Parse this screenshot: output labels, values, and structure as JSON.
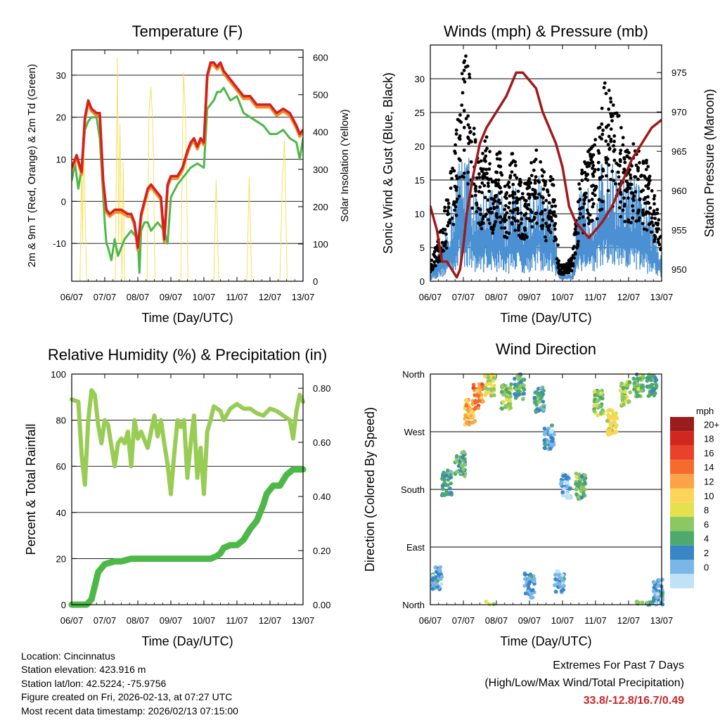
{
  "chart_data": [
    {
      "type": "line",
      "title": "Temperature (F)",
      "xlabel": "Time (Day/UTC)",
      "ylabel": "2m & 9m T (Red, Orange) & 2m Td (Green)",
      "y2label": "Solar Insolation (Yellow)",
      "x_ticks": [
        "06/07",
        "07/07",
        "08/07",
        "09/07",
        "10/07",
        "11/07",
        "12/07",
        "13/07"
      ],
      "ylim": [
        -19,
        36
      ],
      "y_ticks": [
        -10,
        0,
        10,
        20,
        30
      ],
      "y_tick_labels": [
        "-10",
        "0",
        "10",
        "20",
        "30"
      ],
      "y2lim": [
        0,
        620
      ],
      "y2_ticks": [
        0,
        100,
        200,
        300,
        400,
        500,
        600
      ],
      "y2_tick_labels": [
        "0",
        "100",
        "200",
        "300",
        "400",
        "500",
        "600"
      ],
      "colors": {
        "t2m": "#d32020",
        "t9m": "#f28c28",
        "td": "#4db848",
        "solar": "#f5e05a"
      },
      "series": [
        {
          "name": "2m T",
          "axis": "left",
          "x": [
            0,
            0.15,
            0.3,
            0.4,
            0.5,
            0.6,
            0.75,
            0.85,
            0.95,
            1.05,
            1.15,
            1.3,
            1.5,
            1.7,
            1.8,
            1.9,
            2.0,
            2.1,
            2.2,
            2.3,
            2.4,
            2.5,
            2.6,
            2.7,
            2.8,
            2.9,
            3.0,
            3.1,
            3.2,
            3.35,
            3.5,
            3.6,
            3.7,
            3.8,
            3.9,
            4.0,
            4.1,
            4.2,
            4.3,
            4.4,
            4.5,
            4.6,
            4.8,
            5.0,
            5.2,
            5.4,
            5.6,
            5.8,
            6.0,
            6.2,
            6.4,
            6.6,
            6.8,
            6.9,
            7.0
          ],
          "values": [
            8,
            11,
            7,
            20,
            24,
            22,
            21,
            21,
            5,
            -2,
            -3,
            -2,
            -2,
            -3,
            -3,
            -5,
            -11,
            -3,
            0,
            3,
            4,
            3,
            2,
            1,
            -9,
            4,
            6,
            6,
            6,
            8,
            12,
            14,
            15,
            13,
            15,
            14,
            30,
            33,
            33,
            32,
            33,
            31,
            29,
            27,
            25,
            25,
            23,
            23,
            23,
            21,
            22,
            21,
            18,
            16,
            17
          ]
        },
        {
          "name": "2m Td",
          "axis": "left",
          "x": [
            0,
            0.1,
            0.2,
            0.3,
            0.4,
            0.5,
            0.6,
            0.75,
            0.85,
            1.0,
            1.05,
            1.1,
            1.2,
            1.3,
            1.4,
            1.5,
            1.6,
            1.7,
            1.8,
            2.0,
            2.05,
            2.1,
            2.2,
            2.3,
            2.4,
            2.6,
            2.8,
            2.9,
            3.0,
            3.2,
            3.4,
            3.6,
            3.8,
            4.0,
            4.1,
            4.2,
            4.3,
            4.4,
            4.5,
            4.6,
            4.8,
            5.0,
            5.2,
            5.4,
            5.6,
            5.8,
            6.0,
            6.2,
            6.4,
            6.6,
            6.8,
            6.9,
            7.0
          ],
          "values": [
            5,
            9,
            3,
            8,
            17,
            19,
            20,
            20,
            15,
            -5,
            -10,
            -11,
            -14,
            -9,
            -13,
            -11,
            -9,
            -8,
            -7,
            -9,
            -17,
            -7,
            -5,
            -5,
            -7,
            -5,
            -7,
            -10,
            1,
            4,
            6,
            8,
            9,
            8,
            22,
            23,
            24,
            26,
            26,
            27,
            24,
            25,
            21,
            20,
            19,
            18,
            16,
            16,
            17,
            15,
            14,
            10,
            15
          ]
        },
        {
          "name": "Solar Insolation",
          "axis": "right",
          "x": [
            0.25,
            0.3,
            0.33,
            0.36,
            0.45,
            1.32,
            1.38,
            1.42,
            1.46,
            1.52,
            1.56,
            1.6,
            2.28,
            2.34,
            2.4,
            2.46,
            2.52,
            3.3,
            3.38,
            3.45,
            3.52,
            4.3,
            4.37,
            4.45,
            5.3,
            5.37,
            5.45,
            6.3,
            6.37,
            6.44,
            6.52
          ],
          "values": [
            0,
            320,
            100,
            400,
            0,
            0,
            600,
            100,
            420,
            0,
            320,
            0,
            0,
            460,
            520,
            400,
            0,
            0,
            560,
            430,
            0,
            0,
            270,
            0,
            0,
            280,
            0,
            0,
            260,
            380,
            0
          ]
        }
      ]
    },
    {
      "type": "scatter",
      "title": "Winds (mph) & Pressure (mb)",
      "xlabel": "Time (Day/UTC)",
      "ylabel": "Sonic Wind & Gust (Blue, Black)",
      "y2label": "Station Pressure (Maroon)",
      "x_ticks": [
        "06/07",
        "07/07",
        "08/07",
        "09/07",
        "10/07",
        "11/07",
        "12/07",
        "13/07"
      ],
      "ylim": [
        0,
        35
      ],
      "y_ticks": [
        0,
        5,
        10,
        15,
        20,
        25,
        30
      ],
      "y_tick_labels": [
        "0",
        "5",
        "10",
        "15",
        "20",
        "25",
        "30"
      ],
      "y2lim": [
        948.5,
        978.5
      ],
      "y2_ticks": [
        950,
        955,
        960,
        965,
        970,
        975
      ],
      "y2_tick_labels": [
        "950",
        "955",
        "960",
        "965",
        "970",
        "975"
      ],
      "colors": {
        "wind": "#4a90d2",
        "gust": "#000000",
        "pressure": "#a01a1a"
      },
      "series": [
        {
          "name": "Sonic Wind",
          "axis": "left",
          "x": [
            0,
            0.3,
            0.5,
            0.7,
            0.9,
            1.1,
            1.3,
            1.5,
            1.7,
            1.9,
            2.1,
            2.3,
            2.5,
            2.7,
            2.9,
            3.1,
            3.3,
            3.5,
            3.7,
            3.9,
            4.1,
            4.3,
            4.5,
            4.7,
            4.9,
            5.1,
            5.3,
            5.5,
            5.7,
            5.9,
            6.1,
            6.3,
            6.5,
            6.7,
            6.9,
            7.0
          ],
          "values": [
            1,
            3,
            5,
            8,
            12,
            13,
            9,
            7,
            10,
            8,
            9,
            6,
            10,
            8,
            7,
            9,
            10,
            7,
            8,
            1,
            1,
            1,
            8,
            9,
            8,
            10,
            12,
            11,
            10,
            9,
            10,
            9,
            8,
            6,
            4,
            3
          ]
        },
        {
          "name": "Gust",
          "axis": "left",
          "x": [
            0,
            0.3,
            0.5,
            0.7,
            0.9,
            1.1,
            1.3,
            1.5,
            1.7,
            1.9,
            2.1,
            2.3,
            2.5,
            2.7,
            2.9,
            3.1,
            3.3,
            3.5,
            3.7,
            3.9,
            4.1,
            4.3,
            4.5,
            4.7,
            4.9,
            5.1,
            5.3,
            5.5,
            5.7,
            5.9,
            6.1,
            6.3,
            6.5,
            6.7,
            6.9,
            7.0
          ],
          "values": [
            2,
            6,
            10,
            15,
            24,
            28,
            20,
            14,
            18,
            13,
            17,
            11,
            16,
            13,
            12,
            15,
            17,
            12,
            14,
            2,
            2,
            3,
            12,
            15,
            16,
            19,
            24,
            22,
            20,
            16,
            17,
            16,
            15,
            12,
            8,
            6
          ]
        },
        {
          "name": "Station Pressure",
          "axis": "right",
          "x": [
            0,
            0.2,
            0.35,
            0.5,
            0.65,
            0.8,
            0.9,
            1.0,
            1.1,
            1.3,
            1.5,
            1.7,
            2.0,
            2.3,
            2.6,
            2.8,
            3.0,
            3.2,
            3.4,
            3.6,
            3.8,
            4.0,
            4.2,
            4.4,
            4.6,
            4.8,
            5.0,
            5.2,
            5.5,
            5.8,
            6.1,
            6.4,
            6.7,
            7.0
          ],
          "values": [
            958,
            955,
            951,
            951,
            950,
            949,
            950,
            953,
            957,
            962,
            966,
            968,
            970,
            972,
            975,
            975,
            974,
            973,
            970,
            968,
            966,
            963,
            958,
            956,
            955,
            954,
            955,
            956,
            958,
            961,
            964,
            966,
            968,
            969
          ]
        }
      ]
    },
    {
      "type": "line",
      "title": "Relative Humidity (%) & Precipitation (in)",
      "xlabel": "Time (Day/UTC)",
      "ylabel": "Percent & Total Rainfall",
      "x_ticks": [
        "06/07",
        "07/07",
        "08/07",
        "09/07",
        "10/07",
        "11/07",
        "12/07",
        "13/07"
      ],
      "ylim": [
        0,
        100
      ],
      "y_ticks": [
        0,
        20,
        40,
        60,
        80,
        100
      ],
      "y_tick_labels": [
        "0",
        "20",
        "40",
        "60",
        "80",
        "100"
      ],
      "y2lim": [
        0,
        0.8524
      ],
      "y2_ticks": [
        0,
        0.2,
        0.4,
        0.6,
        0.8
      ],
      "y2_tick_labels": [
        "0.00",
        "0.20",
        "0.40",
        "0.60",
        "0.80"
      ],
      "colors": {
        "rh": "#99cc55",
        "precip": "#4cb848"
      },
      "series": [
        {
          "name": "Relative Humidity",
          "axis": "left",
          "x": [
            0,
            0.2,
            0.3,
            0.4,
            0.5,
            0.6,
            0.7,
            0.8,
            0.9,
            1.0,
            1.1,
            1.3,
            1.4,
            1.5,
            1.6,
            1.7,
            1.8,
            1.9,
            2.0,
            2.1,
            2.3,
            2.5,
            2.6,
            2.7,
            2.8,
            2.9,
            3.0,
            3.1,
            3.2,
            3.3,
            3.4,
            3.5,
            3.6,
            3.7,
            3.8,
            3.9,
            4.0,
            4.1,
            4.2,
            4.3,
            4.4,
            4.5,
            4.6,
            4.8,
            5.0,
            5.2,
            5.4,
            5.6,
            5.8,
            6.0,
            6.2,
            6.4,
            6.6,
            6.7,
            6.8,
            6.9,
            7.0
          ],
          "values": [
            89,
            88,
            65,
            52,
            80,
            93,
            91,
            78,
            70,
            80,
            78,
            60,
            70,
            72,
            70,
            75,
            60,
            80,
            72,
            75,
            68,
            82,
            73,
            80,
            70,
            61,
            48,
            65,
            80,
            77,
            80,
            55,
            70,
            82,
            55,
            68,
            48,
            75,
            80,
            86,
            85,
            84,
            80,
            85,
            87,
            85,
            85,
            83,
            82,
            85,
            84,
            82,
            80,
            72,
            84,
            91,
            88
          ]
        },
        {
          "name": "Total Precipitation",
          "axis": "right",
          "x": [
            0,
            0.45,
            0.6,
            0.7,
            0.8,
            1.0,
            1.3,
            1.5,
            1.8,
            2.0,
            2.5,
            3.0,
            3.5,
            4.0,
            4.2,
            4.4,
            4.5,
            4.6,
            4.8,
            5.0,
            5.2,
            5.4,
            5.6,
            5.8,
            5.9,
            6.1,
            6.3,
            6.5,
            6.7,
            7.0
          ],
          "values": [
            0,
            0,
            0.02,
            0.07,
            0.12,
            0.15,
            0.16,
            0.16,
            0.17,
            0.17,
            0.17,
            0.17,
            0.17,
            0.17,
            0.17,
            0.18,
            0.19,
            0.21,
            0.22,
            0.22,
            0.24,
            0.28,
            0.31,
            0.37,
            0.41,
            0.44,
            0.44,
            0.48,
            0.5,
            0.5
          ]
        }
      ]
    },
    {
      "type": "scatter",
      "title": "Wind Direction",
      "xlabel": "Time (Day/UTC)",
      "ylabel": "Direction (Colored By Speed)",
      "x_ticks": [
        "06/07",
        "07/07",
        "08/07",
        "09/07",
        "10/07",
        "11/07",
        "12/07",
        "13/07"
      ],
      "ylim": [
        0,
        360
      ],
      "y_ticks": [
        0,
        90,
        180,
        270,
        360
      ],
      "y_tick_labels": [
        "North",
        "East",
        "South",
        "West",
        "North"
      ],
      "colorbar_title": "mph",
      "colorbar_labels": [
        "20+",
        "18",
        "16",
        "14",
        "12",
        "10",
        "8",
        "6",
        "4",
        "2",
        "0"
      ],
      "colorbar_colors": [
        "#9b1c1c",
        "#d0271f",
        "#e8432a",
        "#f56a2d",
        "#fba346",
        "#fdd45a",
        "#e5e14e",
        "#8bc763",
        "#4daa6c",
        "#3a85c6",
        "#7ab7e6",
        "#bfe2f7"
      ],
      "clusters": [
        {
          "x": 0.2,
          "dir": 40,
          "speed": 3
        },
        {
          "x": 0.5,
          "dir": 190,
          "speed": 5
        },
        {
          "x": 0.9,
          "dir": 220,
          "speed": 6
        },
        {
          "x": 1.2,
          "dir": 300,
          "speed": 13
        },
        {
          "x": 1.45,
          "dir": 325,
          "speed": 15
        },
        {
          "x": 1.8,
          "dir": 345,
          "speed": 10
        },
        {
          "x": 2.3,
          "dir": 325,
          "speed": 8
        },
        {
          "x": 2.7,
          "dir": 340,
          "speed": 6
        },
        {
          "x": 3.0,
          "dir": 30,
          "speed": 3
        },
        {
          "x": 3.3,
          "dir": 320,
          "speed": 5
        },
        {
          "x": 3.6,
          "dir": 260,
          "speed": 3
        },
        {
          "x": 3.9,
          "dir": 35,
          "speed": 3
        },
        {
          "x": 4.1,
          "dir": 185,
          "speed": 2
        },
        {
          "x": 4.55,
          "dir": 185,
          "speed": 7
        },
        {
          "x": 5.1,
          "dir": 315,
          "speed": 8
        },
        {
          "x": 5.5,
          "dir": 285,
          "speed": 11
        },
        {
          "x": 5.9,
          "dir": 330,
          "speed": 8
        },
        {
          "x": 6.3,
          "dir": 345,
          "speed": 7
        },
        {
          "x": 6.7,
          "dir": 345,
          "speed": 6
        },
        {
          "x": 6.9,
          "dir": 20,
          "speed": 3
        }
      ]
    }
  ],
  "info": {
    "location": "Location: Cincinnatus",
    "elevation": "Station elevation: 423.916 m",
    "latlon": "Station lat/lon: 42.5224; -75.9756",
    "created": "Figure created on Fri, 2026-02-13, at 07:27 UTC",
    "recent": "Most recent data timestamp: 2026/02/13 07:15:00"
  },
  "extremes": {
    "title": "Extremes For Past 7 Days",
    "subtitle": "(High/Low/Max Wind/Total Precipitation)",
    "values": "33.8/-12.8/16.7/0.49"
  }
}
